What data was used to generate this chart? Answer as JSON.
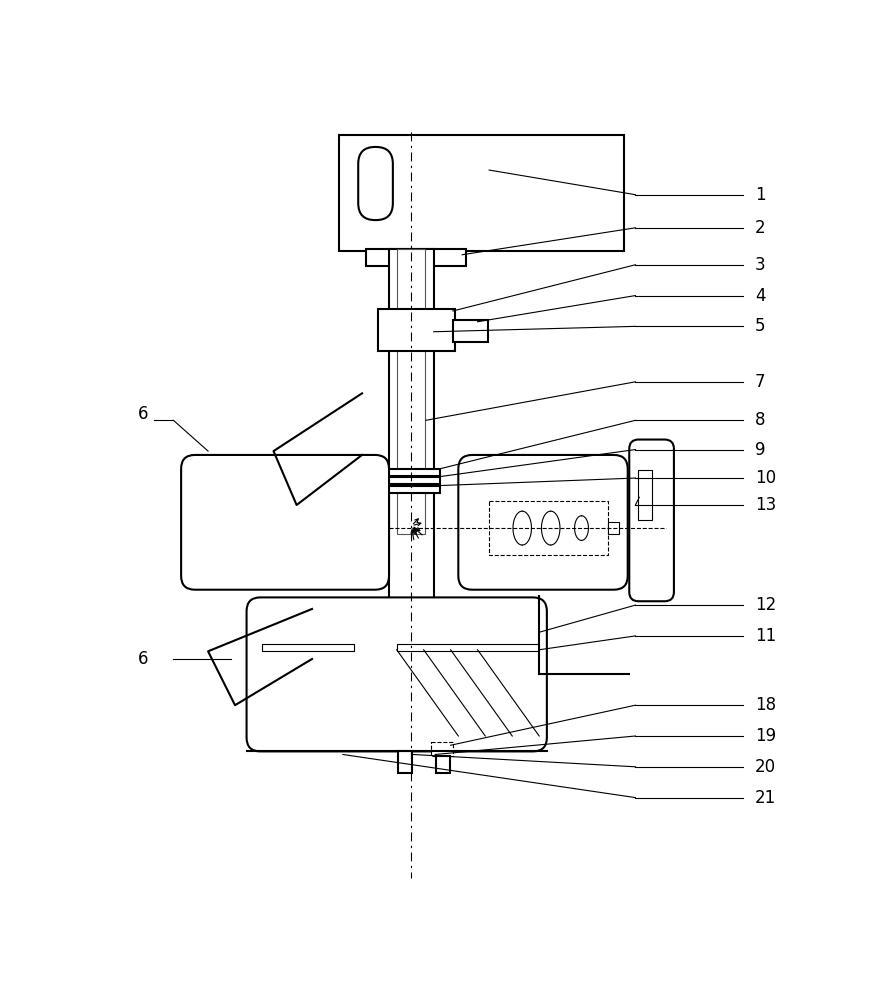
{
  "bg_color": "#ffffff",
  "lc": "#000000",
  "lw": 1.5,
  "tlw": 0.8
}
